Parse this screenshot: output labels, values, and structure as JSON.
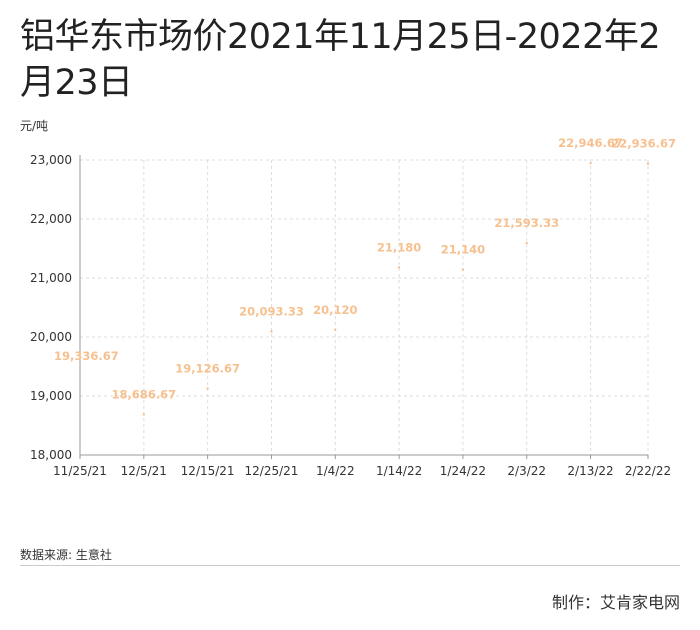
{
  "title": "铝华东市场价2021年11月25日-2022年2月23日",
  "unit_label": "元/吨",
  "source": "数据来源: 生意社",
  "credit": "制作：艾肯家电网",
  "colors": {
    "label": "#f7c08f",
    "point": "#f7c08f",
    "grid": "#dddddd",
    "axis": "#999999"
  },
  "chart_data": {
    "type": "scatter",
    "title": "铝华东市场价2021年11月25日-2022年2月23日",
    "ylabel": "元/吨",
    "xlabel": "",
    "ylim": [
      18000,
      23000
    ],
    "yticks": [
      18000,
      19000,
      20000,
      21000,
      22000,
      23000
    ],
    "ytick_labels": [
      "18,000",
      "19,000",
      "20,000",
      "21,000",
      "22,000",
      "23,000"
    ],
    "xticks": [
      "2021-11-25",
      "2021-12-05",
      "2021-12-15",
      "2021-12-25",
      "2022-01-04",
      "2022-01-14",
      "2022-01-24",
      "2022-02-03",
      "2022-02-13",
      "2022-02-22"
    ],
    "xtick_labels": [
      "11/25/21",
      "12/5/21",
      "12/15/21",
      "12/25/21",
      "1/4/22",
      "1/14/22",
      "1/24/22",
      "2/3/22",
      "2/13/22",
      "2/22/22"
    ],
    "grid": true,
    "x": [
      "2021-11-25",
      "2021-12-05",
      "2021-12-15",
      "2021-12-25",
      "2022-01-04",
      "2022-01-14",
      "2022-01-24",
      "2022-02-03",
      "2022-02-13",
      "2022-02-22"
    ],
    "y": [
      19336.67,
      18686.67,
      19126.67,
      20093.33,
      20120,
      21180,
      21140,
      21593.33,
      22946.67,
      22936.67
    ],
    "data_labels": [
      "19,336.67",
      "18,686.67",
      "19,126.67",
      "20,093.33",
      "20,120",
      "21,180",
      "21,140",
      "21,593.33",
      "22,946.67",
      "22,936.67"
    ]
  }
}
